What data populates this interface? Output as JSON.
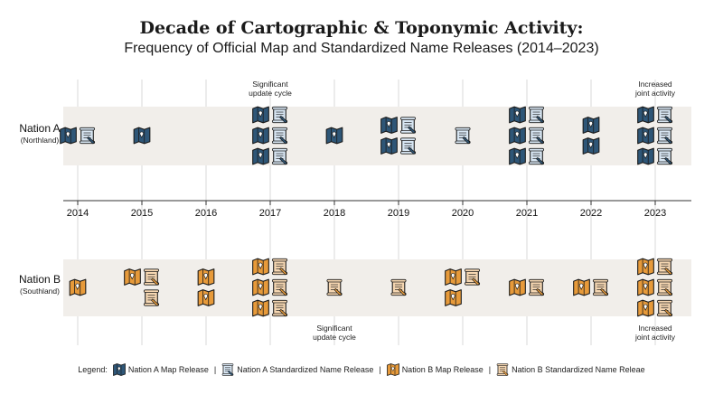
{
  "title": "Decade of Cartographic & Toponymic Activity:",
  "subtitle": "Frequency of Official Map and Standardized Name Releases (2014–2023)",
  "colors": {
    "a_map": "#2e5677",
    "a_name": "#d8e6f3",
    "b_map": "#e79a3a",
    "b_name": "#f6d7b2",
    "band": "#f1eeea",
    "grid": "#cfcfcf"
  },
  "chart_data": {
    "type": "scatter",
    "years": [
      "2014",
      "2015",
      "2016",
      "2017",
      "2018",
      "2019",
      "2020",
      "2021",
      "2022",
      "2023"
    ],
    "series": [
      {
        "name": "Nation A",
        "sublabel": "(Northland)",
        "map_releases": [
          1,
          1,
          0,
          3,
          1,
          2,
          0,
          3,
          2,
          3
        ],
        "name_releases": [
          1,
          0,
          0,
          3,
          0,
          2,
          1,
          3,
          0,
          3
        ]
      },
      {
        "name": "Nation B",
        "sublabel": "(Southland)",
        "map_releases": [
          1,
          1,
          2,
          3,
          0,
          0,
          2,
          1,
          1,
          3
        ],
        "name_releases": [
          0,
          2,
          0,
          3,
          1,
          1,
          1,
          1,
          1,
          3
        ]
      }
    ],
    "annotations": [
      {
        "series": "Nation A",
        "year": "2017",
        "text": "Significant update cycle",
        "position": "above"
      },
      {
        "series": "Nation A",
        "year": "2023",
        "text": "Increased joint activity",
        "position": "above"
      },
      {
        "series": "Nation B",
        "year": "2018",
        "text": "Significant update cycle",
        "position": "below"
      },
      {
        "series": "Nation B",
        "year": "2023",
        "text": "Increased joint activity",
        "position": "below"
      }
    ]
  },
  "legend": {
    "label": "Legend:",
    "items": [
      "Nation A Map Release",
      "Nation A Standardized Name Release",
      "Nation B Map Release",
      "Nation B Standardized Name Releae"
    ],
    "separator": "|"
  }
}
